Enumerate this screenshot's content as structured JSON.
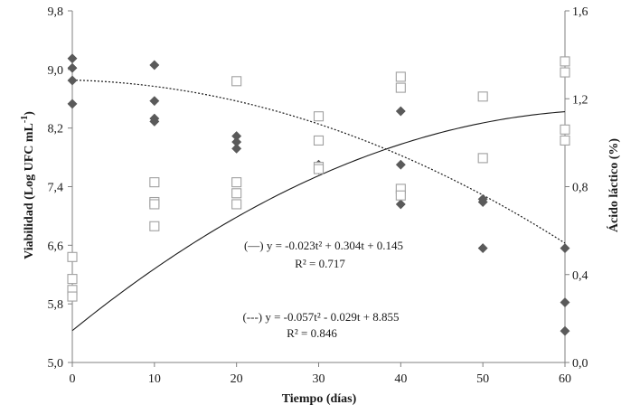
{
  "chart_data": {
    "type": "scatter",
    "xlabel": "Tiempo (días)",
    "ylabel_left": "Viabilidad (Log UFC mL",
    "ylabel_left_sup": "-1",
    "ylabel_left_tail": ")",
    "ylabel_right": "Ácido láctico (%)",
    "x_ticks": [
      "0",
      "10",
      "20",
      "30",
      "40",
      "50",
      "60"
    ],
    "y_left_ticks": [
      "5,0",
      "5,8",
      "6,6",
      "7,4",
      "8,2",
      "9,0",
      "9,8"
    ],
    "y_right_ticks": [
      "0,0",
      "0,4",
      "0,8",
      "1,2",
      "1,6"
    ],
    "xlim": [
      0,
      60
    ],
    "ylim_left": [
      5.0,
      9.8
    ],
    "ylim_right": [
      0.0,
      1.6
    ],
    "series": [
      {
        "axis": "left",
        "marker": "diamond-filled",
        "color": "#5a5a5a",
        "points": [
          [
            0,
            9.15
          ],
          [
            0,
            9.02
          ],
          [
            0,
            8.85
          ],
          [
            0,
            8.53
          ],
          [
            10,
            9.06
          ],
          [
            10,
            8.57
          ],
          [
            10,
            8.33
          ],
          [
            10,
            8.29
          ],
          [
            20,
            8.09
          ],
          [
            20,
            8.01
          ],
          [
            20,
            7.92
          ],
          [
            30,
            7.7
          ],
          [
            30,
            7.67
          ],
          [
            30,
            7.63
          ],
          [
            40,
            8.43
          ],
          [
            40,
            7.7
          ],
          [
            40,
            7.28
          ],
          [
            40,
            7.16
          ],
          [
            50,
            7.23
          ],
          [
            50,
            7.19
          ],
          [
            50,
            6.56
          ],
          [
            60,
            6.56
          ],
          [
            60,
            5.82
          ],
          [
            60,
            5.43
          ]
        ]
      },
      {
        "axis": "right",
        "marker": "square-open",
        "color": "#a0a0a0",
        "points": [
          [
            0,
            0.48
          ],
          [
            0,
            0.38
          ],
          [
            0,
            0.33
          ],
          [
            0,
            0.3
          ],
          [
            10,
            0.82
          ],
          [
            10,
            0.73
          ],
          [
            10,
            0.72
          ],
          [
            10,
            0.62
          ],
          [
            20,
            1.28
          ],
          [
            20,
            0.82
          ],
          [
            20,
            0.77
          ],
          [
            20,
            0.72
          ],
          [
            30,
            1.12
          ],
          [
            30,
            1.01
          ],
          [
            30,
            0.89
          ],
          [
            30,
            0.88
          ],
          [
            40,
            1.3
          ],
          [
            40,
            1.25
          ],
          [
            40,
            0.79
          ],
          [
            40,
            0.76
          ],
          [
            50,
            1.21
          ],
          [
            50,
            0.93
          ],
          [
            60,
            1.37
          ],
          [
            60,
            1.32
          ],
          [
            60,
            1.06
          ],
          [
            60,
            1.01
          ]
        ]
      }
    ],
    "fits": [
      {
        "axis": "right",
        "style": "solid",
        "a": -0.00023,
        "b": 0.0304,
        "c": 0.145,
        "equation": "(—) y = -0.023t² + 0.304t + 0.145",
        "r2": "R² = 0.717"
      },
      {
        "axis": "left",
        "style": "dotted",
        "a": -0.00057,
        "b": -0.0029,
        "c": 8.855,
        "equation": "(---) y = -0.057t² - 0.029t + 8.855",
        "r2": "R² = 0.846"
      }
    ]
  }
}
